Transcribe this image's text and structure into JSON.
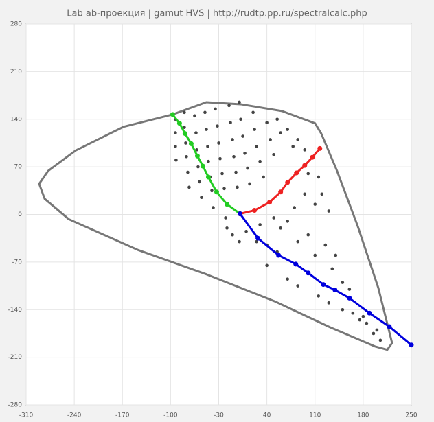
{
  "chart_data": {
    "type": "scatter",
    "title": "Lab ab-проекция | gamut HVS | http://rudtp.pp.ru/spectralcalc.php",
    "xlim": [
      -310,
      250
    ],
    "ylim": [
      -280,
      280
    ],
    "xticks": [
      -310,
      -240,
      -170,
      -100,
      -30,
      40,
      110,
      180,
      250
    ],
    "yticks": [
      -280,
      -210,
      -140,
      -70,
      0,
      70,
      140,
      210,
      280
    ],
    "grid": true,
    "series": [
      {
        "color": "#777777",
        "line": true,
        "markers": false,
        "x": [
          -97,
          -48,
          2,
          62,
          110,
          119,
          142,
          172,
          202,
          222,
          215,
          197,
          132,
          52,
          -48,
          -148,
          -248,
          -283,
          -291,
          -278,
          -238,
          -168,
          -97
        ],
        "y": [
          147,
          165,
          162,
          152,
          134,
          119,
          64,
          -17,
          -108,
          -189,
          -199,
          -194,
          -166,
          -128,
          -88,
          -52,
          -7,
          23,
          45,
          64,
          94,
          129,
          147
        ]
      },
      {
        "color": "#444444",
        "line": false,
        "markers": true,
        "x": [
          -93,
          -93,
          -93,
          -92,
          -80,
          -80,
          -78,
          -77,
          -75,
          -73,
          -65,
          -63,
          -62,
          -60,
          -58,
          -55,
          -50,
          -48,
          -46,
          -45,
          -42,
          -40,
          -38,
          -35,
          -32,
          -30,
          -28,
          -25,
          -22,
          -20,
          -18,
          -15,
          -13,
          -10,
          -8,
          -5,
          -3,
          0,
          2,
          5,
          8,
          12,
          15,
          20,
          22,
          25,
          30,
          35,
          40,
          45,
          50,
          55,
          60,
          70,
          78,
          85,
          95,
          100,
          115,
          120,
          130,
          110,
          95,
          80,
          70,
          60,
          50,
          30,
          25,
          40,
          55,
          10,
          0,
          -10,
          85,
          100,
          110,
          125,
          135,
          140,
          150,
          160,
          70,
          85,
          40,
          115,
          130,
          150,
          165,
          175,
          185,
          195,
          205,
          200,
          180
        ],
        "y": [
          140,
          120,
          100,
          80,
          150,
          128,
          105,
          85,
          62,
          40,
          145,
          120,
          95,
          70,
          48,
          25,
          150,
          125,
          100,
          78,
          55,
          35,
          10,
          155,
          130,
          105,
          82,
          60,
          38,
          -5,
          -20,
          160,
          135,
          110,
          85,
          62,
          40,
          165,
          140,
          115,
          90,
          68,
          45,
          150,
          125,
          100,
          78,
          55,
          135,
          110,
          88,
          140,
          120,
          125,
          100,
          110,
          95,
          60,
          55,
          30,
          5,
          15,
          30,
          10,
          -10,
          -20,
          -5,
          -15,
          -40,
          -45,
          -55,
          -25,
          -40,
          -30,
          -40,
          -30,
          -60,
          -45,
          -80,
          -60,
          -100,
          -110,
          -95,
          -105,
          -75,
          -120,
          -130,
          -140,
          -145,
          -155,
          -160,
          -175,
          -185,
          -170,
          -150
        ]
      },
      {
        "color": "#22cc22",
        "line": true,
        "markers": true,
        "x": [
          1,
          -18,
          -33,
          -45,
          -53,
          -61,
          -70,
          -79,
          -87,
          -97
        ],
        "y": [
          1,
          15,
          33,
          55,
          71,
          86,
          104,
          119,
          134,
          147
        ]
      },
      {
        "color": "#ee2222",
        "line": true,
        "markers": true,
        "x": [
          1,
          22,
          44,
          60,
          70,
          83,
          95,
          106,
          117
        ],
        "y": [
          1,
          6,
          18,
          33,
          47,
          61,
          72,
          84,
          97
        ]
      },
      {
        "color": "#0000dd",
        "line": true,
        "markers": true,
        "x": [
          1,
          27,
          57,
          82,
          100,
          122,
          139,
          160,
          189,
          218,
          250
        ],
        "y": [
          1,
          -35,
          -60,
          -73,
          -86,
          -103,
          -111,
          -123,
          -145,
          -165,
          -192
        ]
      }
    ]
  }
}
